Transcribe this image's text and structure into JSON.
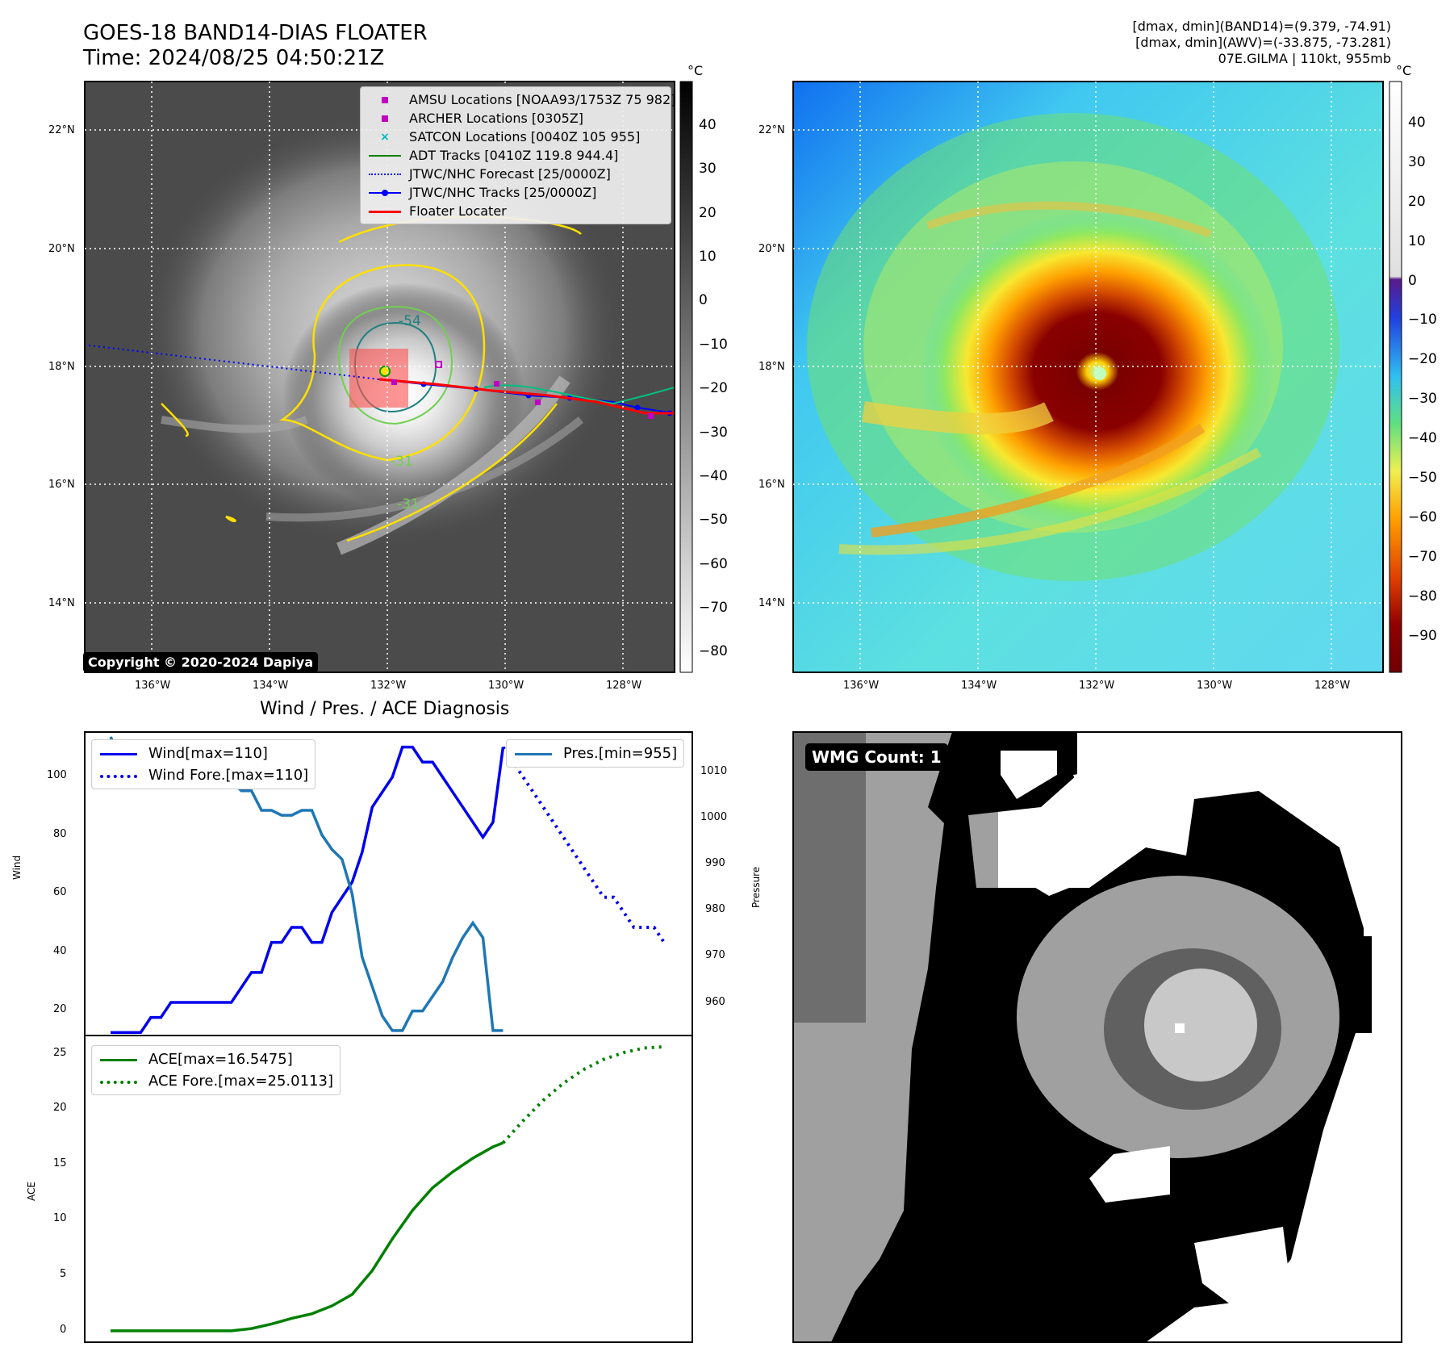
{
  "header": {
    "title_line1": "GOES-18 BAND14-DIAS FLOATER",
    "title_line2": "Time: 2024/08/25 04:50:21Z",
    "info_line1": "[dmax, dmin](BAND14)=(9.379, -74.91)",
    "info_line2": "[dmax, dmin](AWV)=(-33.875, -73.281)",
    "info_line3": "07E.GILMA | 110kt, 955mb"
  },
  "map_axes": {
    "lat_ticks": [
      "22°N",
      "20°N",
      "18°N",
      "16°N",
      "14°N"
    ],
    "lon_ticks": [
      "136°W",
      "134°W",
      "132°W",
      "130°W",
      "128°W"
    ]
  },
  "ir_panel": {
    "legend": [
      {
        "label": "AMSU Locations [NOAA93/1753Z 75 982]",
        "marker": "square",
        "color": "#c000c0"
      },
      {
        "label": "ARCHER Locations [0305Z]",
        "marker": "square",
        "color": "#c000c0"
      },
      {
        "label": "SATCON Locations [0040Z 105 955]",
        "marker": "x",
        "color": "#00b8b8"
      },
      {
        "label": "ADT Tracks [0410Z 119.8 944.4]",
        "marker": "line",
        "color": "#008000"
      },
      {
        "label": "JTWC/NHC Forecast [25/0000Z]",
        "marker": "dotted",
        "color": "#0000ff"
      },
      {
        "label": "JTWC/NHC Tracks [25/0000Z]",
        "marker": "linedot",
        "color": "#0000ff"
      },
      {
        "label": "Floater Locater",
        "marker": "line",
        "color": "#ff0000"
      }
    ],
    "contour_labels": [
      "-54",
      "-31",
      "-31"
    ],
    "copyright": "Copyright © 2020-2024 Dapiya",
    "colorbar_unit": "°C",
    "colorbar_ticks": [
      "40",
      "30",
      "20",
      "10",
      "0",
      "−10",
      "−20",
      "−30",
      "−40",
      "−50",
      "−60",
      "−70",
      "−80"
    ]
  },
  "wv_panel": {
    "colorbar_unit": "°C",
    "colorbar_ticks": [
      "40",
      "30",
      "20",
      "10",
      "0",
      "−10",
      "−20",
      "−30",
      "−40",
      "−50",
      "−60",
      "−70",
      "−80",
      "−90"
    ]
  },
  "diagnosis": {
    "title": "Wind / Pres. / ACE Diagnosis",
    "wind_ylabel": "Wind",
    "pres_ylabel": "Pressure",
    "ace_ylabel": "ACE",
    "wind_ticks": [
      "100",
      "80",
      "60",
      "40",
      "20"
    ],
    "pres_ticks": [
      "1010",
      "1000",
      "990",
      "980",
      "970",
      "960"
    ],
    "ace_ticks": [
      "25",
      "20",
      "15",
      "10",
      "5",
      "0"
    ],
    "legend_wind": "Wind[max=110]",
    "legend_wind_fore": "Wind Fore.[max=110]",
    "legend_pres": "Pres.[min=955]",
    "legend_ace": "ACE[max=16.5475]",
    "legend_ace_fore": "ACE Fore.[max=25.0113]",
    "colors": {
      "wind": "#0000ee",
      "pres": "#1f77b4",
      "ace": "#008000"
    }
  },
  "wmg_panel": {
    "label": "WMG Count: 1"
  },
  "chart_data": [
    {
      "type": "line",
      "title": "Wind / Pres. / ACE Diagnosis",
      "ylabel": "Wind",
      "ylim": [
        14,
        115
      ],
      "series": [
        {
          "name": "Wind[max=110]",
          "x": [
            0,
            1,
            2,
            3,
            4,
            5,
            6,
            7,
            8,
            9,
            10,
            11,
            12,
            13,
            14,
            15,
            16,
            17,
            18,
            19,
            20,
            21,
            22,
            23,
            24,
            25,
            26,
            27,
            28,
            29,
            30,
            31,
            32,
            33,
            34,
            35,
            36,
            37,
            38,
            39
          ],
          "values": [
            15,
            15,
            15,
            15,
            20,
            20,
            25,
            25,
            25,
            25,
            25,
            25,
            25,
            30,
            35,
            35,
            45,
            45,
            50,
            50,
            45,
            45,
            55,
            60,
            65,
            75,
            90,
            95,
            100,
            110,
            110,
            105,
            105,
            100,
            95,
            90,
            85,
            80,
            85,
            110
          ]
        },
        {
          "name": "Wind Fore.[max=110]",
          "x": [
            39,
            40,
            41,
            42,
            43,
            44,
            45,
            46,
            47,
            48,
            49,
            50,
            51,
            52,
            53,
            54,
            55
          ],
          "values": [
            110,
            105,
            100,
            95,
            90,
            85,
            80,
            75,
            70,
            65,
            60,
            60,
            55,
            50,
            50,
            50,
            45
          ]
        }
      ]
    },
    {
      "type": "line",
      "ylabel": "Pressure",
      "ylim": [
        954,
        1016
      ],
      "series": [
        {
          "name": "Pres.[min=955]",
          "x": [
            0,
            1,
            2,
            3,
            4,
            5,
            6,
            7,
            8,
            9,
            10,
            11,
            12,
            13,
            14,
            15,
            16,
            17,
            18,
            19,
            20,
            21,
            22,
            23,
            24,
            25,
            26,
            27,
            28,
            29,
            30,
            31,
            32,
            33,
            34,
            35,
            36,
            37,
            38,
            39
          ],
          "values": [
            1015,
            1011,
            1010,
            1010,
            1009,
            1009,
            1009,
            1008,
            1008,
            1008,
            1007,
            1007,
            1006,
            1004,
            1004,
            1000,
            1000,
            999,
            999,
            1000,
            1000,
            995,
            992,
            990,
            983,
            970,
            964,
            958,
            955,
            955,
            959,
            959,
            962,
            965,
            970,
            974,
            977,
            974,
            955,
            955
          ]
        }
      ]
    },
    {
      "type": "line",
      "ylabel": "ACE",
      "ylim": [
        -1,
        26
      ],
      "series": [
        {
          "name": "ACE[max=16.5475]",
          "x": [
            0,
            4,
            8,
            12,
            14,
            16,
            18,
            20,
            22,
            24,
            26,
            28,
            30,
            32,
            34,
            36,
            38,
            39
          ],
          "values": [
            0,
            0,
            0,
            0,
            0.2,
            0.6,
            1.1,
            1.5,
            2.2,
            3.2,
            5.3,
            8.1,
            10.6,
            12.6,
            14.0,
            15.2,
            16.2,
            16.55
          ]
        },
        {
          "name": "ACE Fore.[max=25.0113]",
          "x": [
            39,
            41,
            43,
            45,
            47,
            49,
            51,
            53,
            55
          ],
          "values": [
            16.55,
            18.5,
            20.3,
            21.8,
            23.0,
            23.9,
            24.5,
            24.9,
            25.01
          ]
        }
      ]
    }
  ]
}
